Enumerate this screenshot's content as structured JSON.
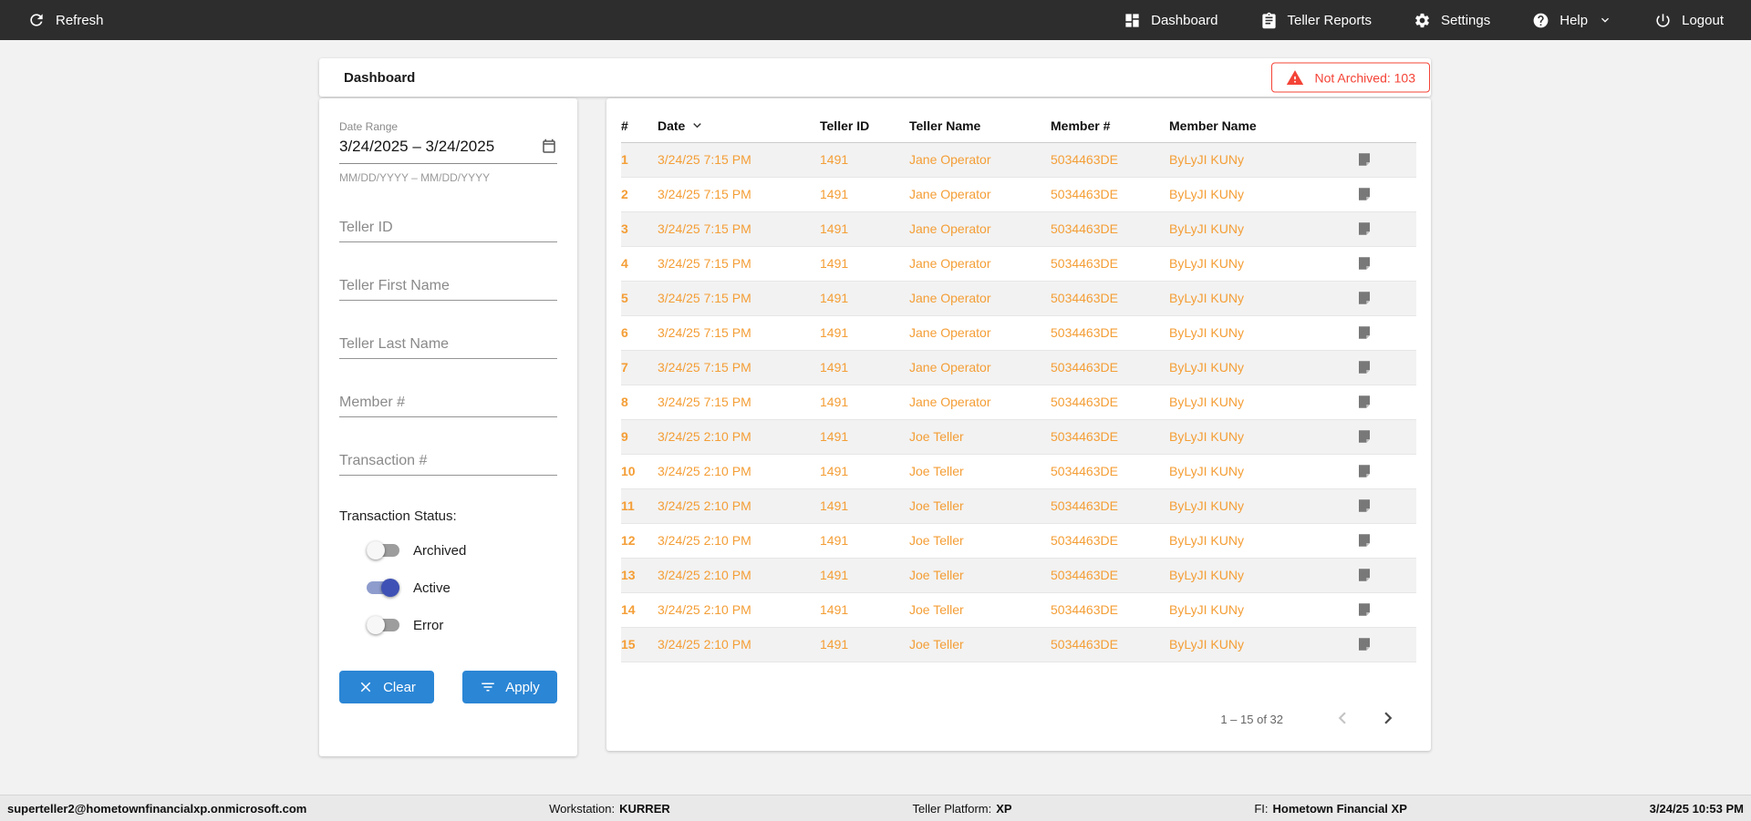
{
  "colors": {
    "navbar_bg": "#2d2d2d",
    "accent_blue": "#2b86d5",
    "row_orange": "#f49e36",
    "alert_red": "#f44336",
    "toggle_on_indigo": "#3f51b5",
    "row_alt_gray": "#f2f2f2"
  },
  "navbar": {
    "refresh_label": "Refresh",
    "items": [
      {
        "label": "Dashboard",
        "icon": "dashboard-icon"
      },
      {
        "label": "Teller Reports",
        "icon": "clipboard-icon"
      },
      {
        "label": "Settings",
        "icon": "gear-icon"
      },
      {
        "label": "Help",
        "icon": "help-icon",
        "has_dropdown": true
      },
      {
        "label": "Logout",
        "icon": "power-icon"
      }
    ]
  },
  "header": {
    "title": "Dashboard",
    "alert": "Not Archived: 103"
  },
  "filters": {
    "date_range": {
      "label": "Date Range",
      "value": "3/24/2025 – 3/24/2025",
      "hint": "MM/DD/YYYY – MM/DD/YYYY"
    },
    "inputs": [
      {
        "placeholder": "Teller ID"
      },
      {
        "placeholder": "Teller First Name"
      },
      {
        "placeholder": "Teller Last Name"
      },
      {
        "placeholder": "Member #"
      },
      {
        "placeholder": "Transaction #"
      }
    ],
    "status": {
      "label": "Transaction Status:",
      "toggles": [
        {
          "label": "Archived",
          "on": false
        },
        {
          "label": "Active",
          "on": true
        },
        {
          "label": "Error",
          "on": false
        }
      ]
    },
    "clear_label": "Clear",
    "apply_label": "Apply"
  },
  "table": {
    "columns": [
      "#",
      "Date",
      "Teller ID",
      "Teller Name",
      "Member #",
      "Member Name"
    ],
    "rows": [
      [
        "1",
        "3/24/25 7:15 PM",
        "1491",
        "Jane Operator",
        "5034463DE",
        "ByLyJI KUNy"
      ],
      [
        "2",
        "3/24/25 7:15 PM",
        "1491",
        "Jane Operator",
        "5034463DE",
        "ByLyJI KUNy"
      ],
      [
        "3",
        "3/24/25 7:15 PM",
        "1491",
        "Jane Operator",
        "5034463DE",
        "ByLyJI KUNy"
      ],
      [
        "4",
        "3/24/25 7:15 PM",
        "1491",
        "Jane Operator",
        "5034463DE",
        "ByLyJI KUNy"
      ],
      [
        "5",
        "3/24/25 7:15 PM",
        "1491",
        "Jane Operator",
        "5034463DE",
        "ByLyJI KUNy"
      ],
      [
        "6",
        "3/24/25 7:15 PM",
        "1491",
        "Jane Operator",
        "5034463DE",
        "ByLyJI KUNy"
      ],
      [
        "7",
        "3/24/25 7:15 PM",
        "1491",
        "Jane Operator",
        "5034463DE",
        "ByLyJI KUNy"
      ],
      [
        "8",
        "3/24/25 7:15 PM",
        "1491",
        "Jane Operator",
        "5034463DE",
        "ByLyJI KUNy"
      ],
      [
        "9",
        "3/24/25 2:10 PM",
        "1491",
        "Joe Teller",
        "5034463DE",
        "ByLyJI KUNy"
      ],
      [
        "10",
        "3/24/25 2:10 PM",
        "1491",
        "Joe Teller",
        "5034463DE",
        "ByLyJI KUNy"
      ],
      [
        "11",
        "3/24/25 2:10 PM",
        "1491",
        "Joe Teller",
        "5034463DE",
        "ByLyJI KUNy"
      ],
      [
        "12",
        "3/24/25 2:10 PM",
        "1491",
        "Joe Teller",
        "5034463DE",
        "ByLyJI KUNy"
      ],
      [
        "13",
        "3/24/25 2:10 PM",
        "1491",
        "Joe Teller",
        "5034463DE",
        "ByLyJI KUNy"
      ],
      [
        "14",
        "3/24/25 2:10 PM",
        "1491",
        "Joe Teller",
        "5034463DE",
        "ByLyJI KUNy"
      ],
      [
        "15",
        "3/24/25 2:10 PM",
        "1491",
        "Joe Teller",
        "5034463DE",
        "ByLyJI KUNy"
      ]
    ]
  },
  "pagination": {
    "range_text": "1 – 15 of 32"
  },
  "statusbar": {
    "user": "superteller2@hometownfinancialxp.onmicrosoft.com",
    "workstation_label": "Workstation:",
    "workstation": "KURRER",
    "platform_label": "Teller Platform:",
    "platform": "XP",
    "fi_label": "FI:",
    "fi": "Hometown Financial XP",
    "time": "3/24/25 10:53 PM"
  }
}
